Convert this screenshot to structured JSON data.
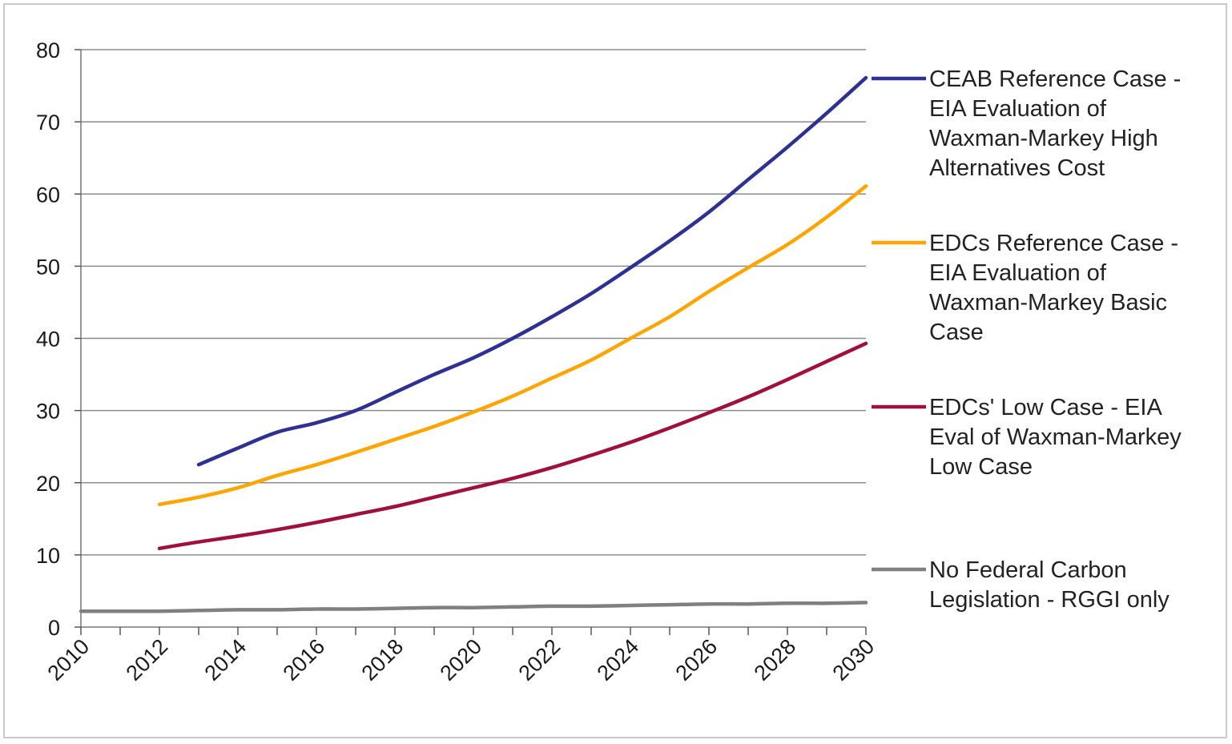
{
  "chart_data": {
    "type": "line",
    "title": "",
    "xlabel": "",
    "ylabel": "",
    "xlim": [
      2010,
      2030
    ],
    "ylim": [
      0,
      80
    ],
    "x_ticks": [
      "2010",
      "2012",
      "2014",
      "2016",
      "2018",
      "2020",
      "2022",
      "2024",
      "2026",
      "2028",
      "2030"
    ],
    "y_ticks": [
      "0",
      "10",
      "20",
      "30",
      "40",
      "50",
      "60",
      "70",
      "80"
    ],
    "grid": "horizontal",
    "legend_position": "right",
    "series": [
      {
        "name": "CEAB Reference Case - EIA Evaluation of Waxman-Markey High Alternatives Cost",
        "legend_lines": [
          "CEAB Reference Case -",
          "EIA Evaluation of",
          "Waxman-Markey High",
          "Alternatives Cost"
        ],
        "color": "#2e3192",
        "x": [
          2013,
          2014,
          2015,
          2016,
          2017,
          2018,
          2019,
          2020,
          2021,
          2022,
          2023,
          2024,
          2025,
          2026,
          2027,
          2028,
          2029,
          2030
        ],
        "y": [
          22.5,
          24.8,
          27.0,
          28.3,
          30.0,
          32.5,
          35.0,
          37.3,
          40.0,
          43.0,
          46.2,
          49.8,
          53.5,
          57.5,
          62.0,
          66.5,
          71.2,
          76.1
        ]
      },
      {
        "name": "EDCs Reference Case - EIA Evaluation of Waxman-Markey Basic Case",
        "legend_lines": [
          "EDCs Reference Case -",
          "EIA Evaluation of",
          "Waxman-Markey Basic",
          "Case"
        ],
        "color": "#ffa500",
        "x": [
          2012,
          2013,
          2014,
          2015,
          2016,
          2017,
          2018,
          2019,
          2020,
          2021,
          2022,
          2023,
          2024,
          2025,
          2026,
          2027,
          2028,
          2029,
          2030
        ],
        "y": [
          17.0,
          18.0,
          19.3,
          21.0,
          22.5,
          24.2,
          26.0,
          27.8,
          29.8,
          32.0,
          34.5,
          37.0,
          40.0,
          43.0,
          46.5,
          49.8,
          53.0,
          56.8,
          61.1
        ]
      },
      {
        "name": "EDCs' Low Case - EIA Eval of Waxman-Markey Low Case",
        "legend_lines": [
          "EDCs' Low Case -  EIA",
          "Eval of Waxman-Markey",
          "Low Case"
        ],
        "color": "#a0103e",
        "x": [
          2012,
          2013,
          2014,
          2015,
          2016,
          2017,
          2018,
          2019,
          2020,
          2021,
          2022,
          2023,
          2024,
          2025,
          2026,
          2027,
          2028,
          2029,
          2030
        ],
        "y": [
          10.9,
          11.8,
          12.6,
          13.5,
          14.5,
          15.6,
          16.7,
          18.0,
          19.3,
          20.6,
          22.1,
          23.8,
          25.6,
          27.6,
          29.7,
          31.9,
          34.3,
          36.8,
          39.3
        ]
      },
      {
        "name": "No Federal Carbon Legislation - RGGI only",
        "legend_lines": [
          "No  Federal Carbon",
          "Legislation - RGGI only"
        ],
        "color": "#808080",
        "x": [
          2010,
          2011,
          2012,
          2013,
          2014,
          2015,
          2016,
          2017,
          2018,
          2019,
          2020,
          2021,
          2022,
          2023,
          2024,
          2025,
          2026,
          2027,
          2028,
          2029,
          2030
        ],
        "y": [
          2.2,
          2.2,
          2.2,
          2.3,
          2.4,
          2.4,
          2.5,
          2.5,
          2.6,
          2.7,
          2.7,
          2.8,
          2.9,
          2.9,
          3.0,
          3.1,
          3.2,
          3.2,
          3.3,
          3.3,
          3.4
        ]
      }
    ]
  }
}
